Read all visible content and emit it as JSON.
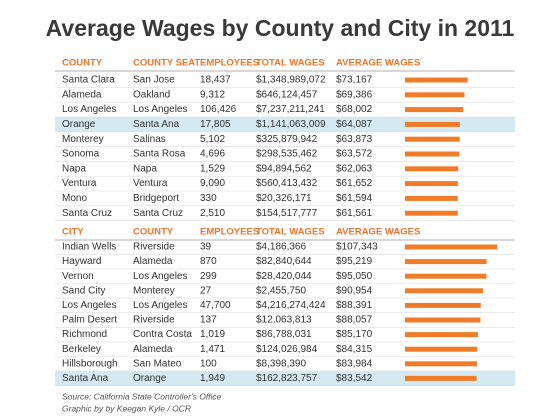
{
  "title": "Average Wages by County and City in 2011",
  "tables": [
    {
      "columns": [
        "COUNTY",
        "COUNTY SEAT",
        "EMPLOYEES",
        "TOTAL WAGES",
        "AVERAGE WAGES"
      ],
      "highlight": 3,
      "rows": [
        [
          "Santa Clara",
          "San Jose",
          "18,437",
          "$1,348,989,072"
        ],
        [
          "Alameda",
          "Oakland",
          "9,312",
          "$646,124,457"
        ],
        [
          "Los Angeles",
          "Los Angeles",
          "106,426",
          "$7,237,211,241"
        ],
        [
          "Orange",
          "Santa Ana",
          "17,805",
          "$1,141,063,009"
        ],
        [
          "Monterey",
          "Salinas",
          "5,102",
          "$325,879,942"
        ],
        [
          "Sonoma",
          "Santa Rosa",
          "4,696",
          "$298,535,462"
        ],
        [
          "Napa",
          "Napa",
          "1,529",
          "$94,894,562"
        ],
        [
          "Ventura",
          "Ventura",
          "9,090",
          "$560,413,432"
        ],
        [
          "Mono",
          "Bridgeport",
          "330",
          "$20,326,171"
        ],
        [
          "Santa Cruz",
          "Santa Cruz",
          "2,510",
          "$154,517,777"
        ]
      ],
      "values": [
        73167,
        69386,
        68002,
        64087,
        63873,
        63572,
        62063,
        61652,
        61594,
        61561
      ],
      "value_labels": [
        "$73,167",
        "$69,386",
        "$68,002",
        "$64,087",
        "$63,873",
        "$63,572",
        "$62,063",
        "$61,652",
        "$61,594",
        "$61,561"
      ]
    },
    {
      "columns": [
        "CITY",
        "COUNTY",
        "EMPLOYEES",
        "TOTAL WAGES",
        "AVERAGE WAGES"
      ],
      "highlight": 9,
      "rows": [
        [
          "Indian Wells",
          "Riverside",
          "39",
          "$4,186,366"
        ],
        [
          "Hayward",
          "Alameda",
          "870",
          "$82,840,644"
        ],
        [
          "Vernon",
          "Los Angeles",
          "299",
          "$28,420,044"
        ],
        [
          "Sand City",
          "Monterey",
          "27",
          "$2,455,750"
        ],
        [
          "Los Angeles",
          "Los Angeles",
          "47,700",
          "$4,216,274,424"
        ],
        [
          "Palm Desert",
          "Riverside",
          "137",
          "$12,063,813"
        ],
        [
          "Richmond",
          "Contra Costa",
          "1,019",
          "$86,788,031"
        ],
        [
          "Berkeley",
          "Alameda",
          "1,471",
          "$124,026,984"
        ],
        [
          "Hillsborough",
          "San Mateo",
          "100",
          "$8,398,390"
        ],
        [
          "Santa Ana",
          "Orange",
          "1,949",
          "$162,823,757"
        ]
      ],
      "values": [
        107343,
        95219,
        95050,
        90954,
        88391,
        88057,
        85170,
        84315,
        83984,
        83542
      ],
      "value_labels": [
        "$107,343",
        "$95,219",
        "$95,050",
        "$90,954",
        "$88,391",
        "$88,057",
        "$85,170",
        "$84,315",
        "$83,984",
        "$83,542"
      ]
    }
  ],
  "source": "Source: California State Controller's Office",
  "credit": "Graphic by by Keegan Kyle / OCR"
}
